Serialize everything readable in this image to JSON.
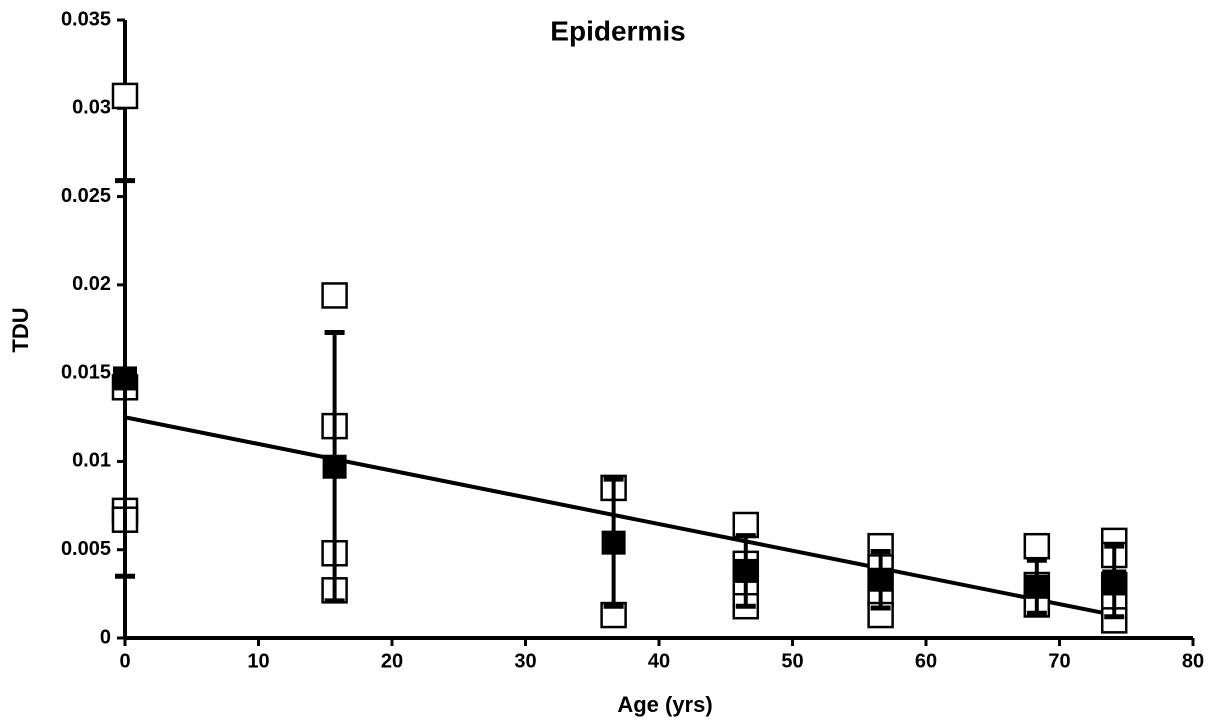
{
  "chart_data": {
    "type": "scatter",
    "title": "Epidermis",
    "x_label": "Age (yrs)",
    "y_label": "TDU",
    "xlim": [
      0,
      80
    ],
    "xticks": [
      0,
      10,
      20,
      30,
      40,
      50,
      60,
      70,
      80
    ],
    "ylim": [
      0,
      0.035
    ],
    "yticks": [
      0,
      0.005,
      0.01,
      0.015,
      0.02,
      0.025,
      0.03,
      0.035
    ],
    "grid": false,
    "series": [
      {
        "marker": "open-square",
        "color": "#000000",
        "x": [
          0,
          0,
          0,
          0,
          15.7,
          15.7,
          15.7,
          15.7,
          36.6,
          36.6,
          46.5,
          46.5,
          46.5,
          46.5,
          56.6,
          56.6,
          56.6,
          56.6,
          68.3,
          68.3,
          68.3,
          74.1,
          74.1,
          74.1,
          74.1,
          74.1
        ],
        "values": [
          0.0307,
          0.0142,
          0.0072,
          0.0067,
          0.0194,
          0.012,
          0.0048,
          0.0027,
          0.0085,
          0.0013,
          0.0064,
          0.0042,
          0.003,
          0.0018,
          0.0052,
          0.004,
          0.0025,
          0.0013,
          0.0052,
          0.003,
          0.0019,
          0.0055,
          0.0047,
          0.003,
          0.0018,
          0.001
        ]
      },
      {
        "marker": "filled-square",
        "color": "#000000",
        "x": [
          0,
          15.7,
          36.6,
          46.5,
          56.6,
          68.3,
          74.1
        ],
        "values": [
          0.0147,
          0.0097,
          0.0054,
          0.0038,
          0.0033,
          0.0029,
          0.0032
        ],
        "errors": [
          0.0112,
          0.0076,
          0.0036,
          0.002,
          0.0016,
          0.0015,
          0.002
        ]
      },
      {
        "marker": "line",
        "color": "#000000",
        "x": [
          0,
          74.1
        ],
        "values": [
          0.0125,
          0.0013
        ]
      }
    ]
  }
}
